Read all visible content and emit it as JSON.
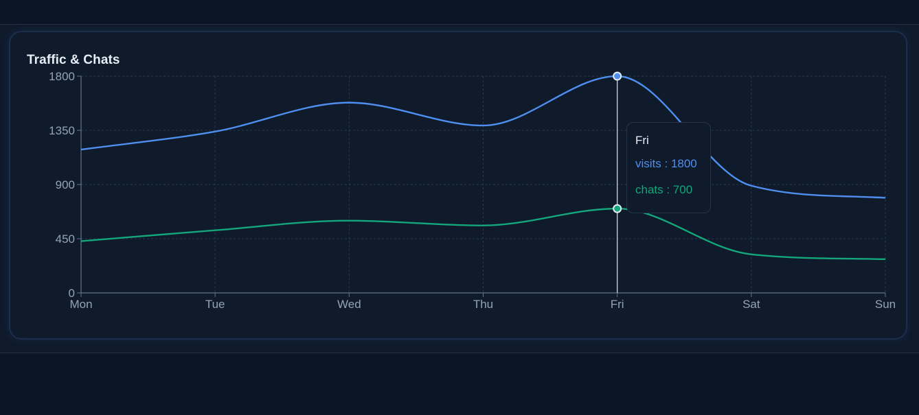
{
  "chart_data": {
    "type": "line",
    "title": "Traffic & Chats",
    "categories": [
      "Mon",
      "Tue",
      "Wed",
      "Thu",
      "Fri",
      "Sat",
      "Sun"
    ],
    "series": [
      {
        "name": "visits",
        "values": [
          1190,
          1340,
          1580,
          1390,
          1800,
          890,
          790
        ],
        "color": "#4f8ff0"
      },
      {
        "name": "chats",
        "values": [
          430,
          520,
          600,
          560,
          700,
          320,
          280
        ],
        "color": "#14a77b"
      }
    ],
    "yticks": [
      0,
      450,
      900,
      1350,
      1800
    ],
    "ylim": [
      0,
      1800
    ],
    "grid": true,
    "active_category": "Fri",
    "tooltip": {
      "label": "Fri",
      "rows": [
        {
          "text": "visits : 1800",
          "color": "#4f8ff0"
        },
        {
          "text": "chats : 700",
          "color": "#14a77b"
        }
      ]
    }
  }
}
